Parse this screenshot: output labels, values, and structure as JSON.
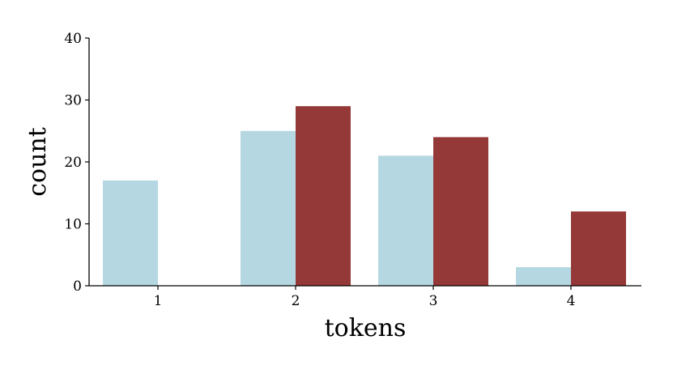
{
  "chart_data": {
    "type": "bar",
    "categories": [
      "1",
      "2",
      "3",
      "4"
    ],
    "series": [
      {
        "values": [
          17,
          25,
          21,
          3
        ],
        "color": "#b5d7e1"
      },
      {
        "values": [
          0,
          29,
          24,
          12
        ],
        "color": "#943838"
      }
    ],
    "xlabel": "tokens",
    "ylabel": "count",
    "ylim": [
      0,
      40
    ],
    "yticks": [
      "0",
      "10",
      "20",
      "30",
      "40"
    ],
    "grid": false,
    "legend": "none"
  }
}
